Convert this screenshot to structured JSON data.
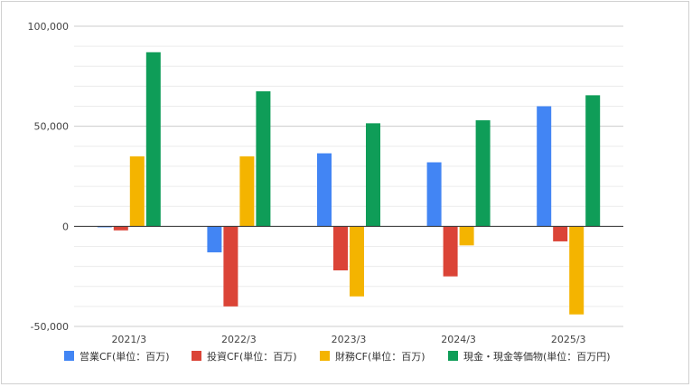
{
  "chart_data": {
    "type": "bar",
    "categories": [
      "2021/3",
      "2022/3",
      "2023/3",
      "2024/3",
      "2025/3"
    ],
    "series": [
      {
        "name": "営業CF(単位：百万)",
        "color": "#4285f4",
        "values": [
          -500,
          -13000,
          36500,
          32000,
          60000
        ]
      },
      {
        "name": "投資CF(単位：百万)",
        "color": "#db4437",
        "values": [
          -2000,
          -40000,
          -22000,
          -25000,
          -7500
        ]
      },
      {
        "name": "財務CF(単位：百万)",
        "color": "#f4b400",
        "values": [
          35000,
          35000,
          -35000,
          -9500,
          -44000
        ]
      },
      {
        "name": "現金・現金等価物(単位：百万円)",
        "color": "#0f9d58",
        "values": [
          87000,
          67500,
          51500,
          53000,
          65500
        ]
      }
    ],
    "ylim": [
      -50000,
      100000
    ],
    "yticks": [
      -50000,
      0,
      50000,
      100000
    ],
    "ytick_labels": [
      "-50,000",
      "0",
      "50,000",
      "100,000"
    ],
    "grid": true,
    "legend_position": "bottom"
  }
}
